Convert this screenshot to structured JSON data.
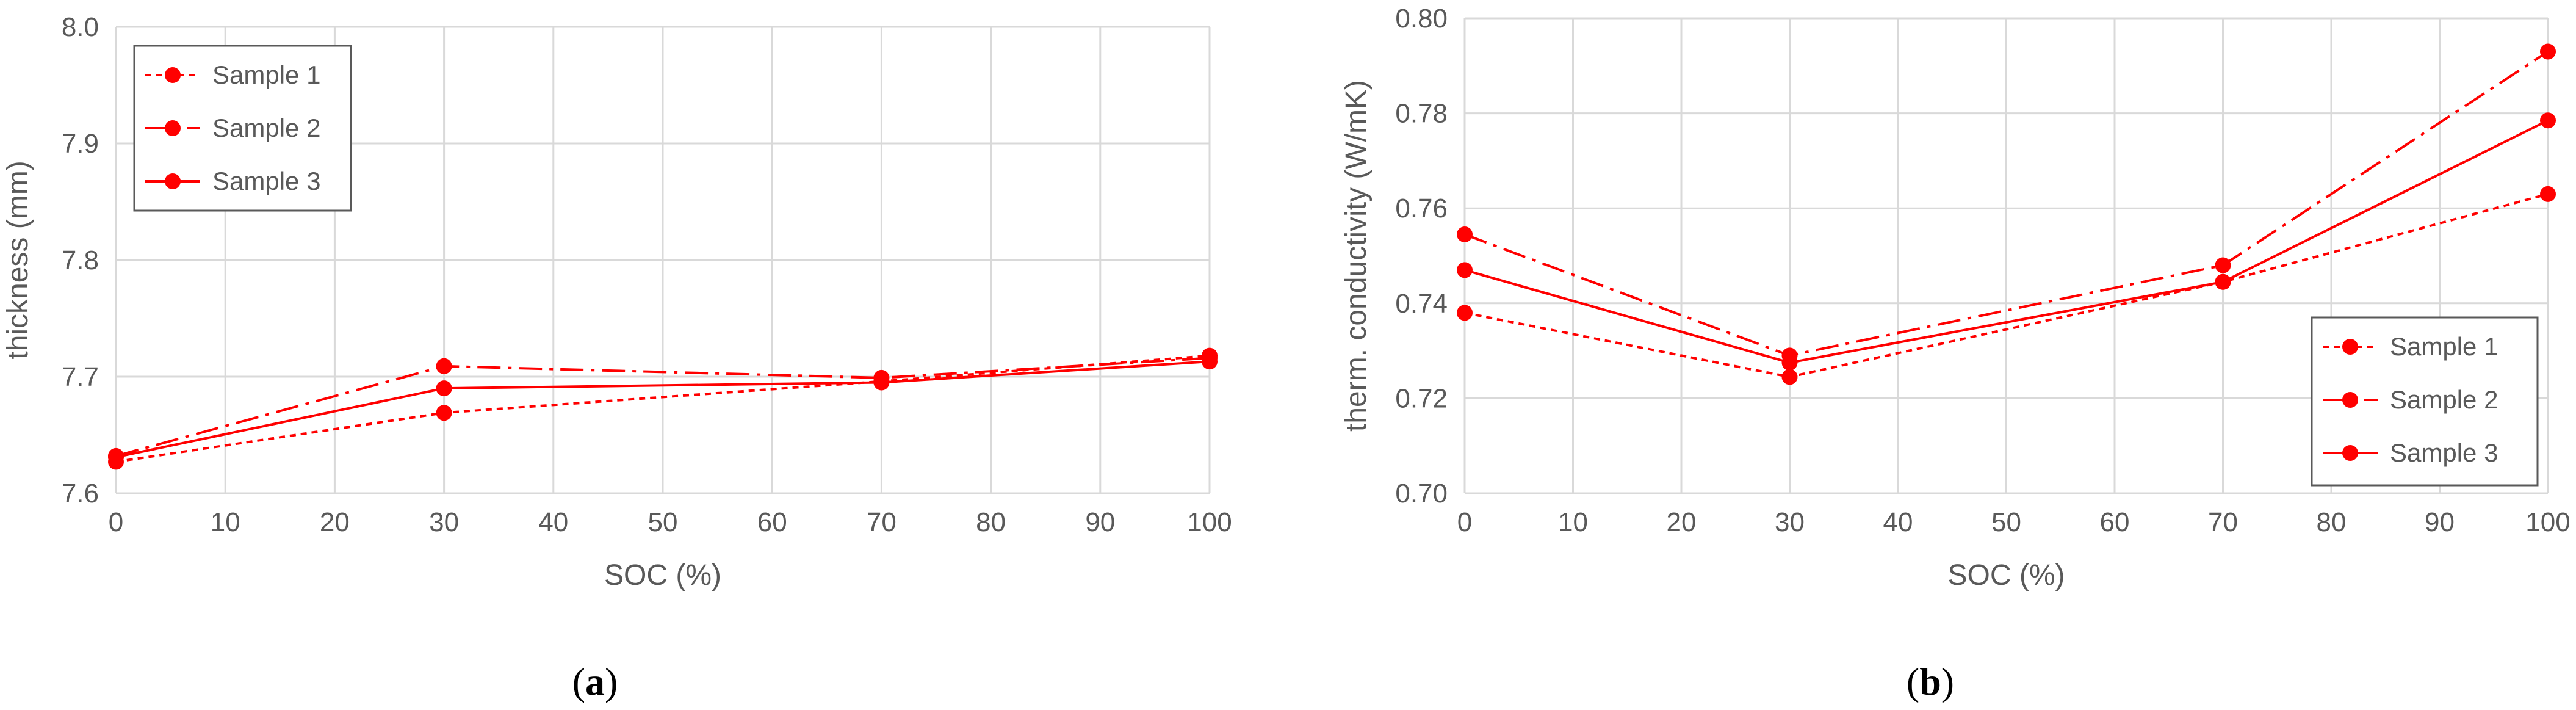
{
  "chart_data": [
    {
      "type": "line",
      "caption": {
        "open": "(",
        "letter": "a",
        "close": ")"
      },
      "xlabel": "SOC (%)",
      "ylabel": "thickness (mm)",
      "xlim": [
        0,
        100
      ],
      "ylim": [
        7.6,
        8.0
      ],
      "x_ticks": [
        "0",
        "10",
        "20",
        "30",
        "40",
        "50",
        "60",
        "70",
        "80",
        "90",
        "100"
      ],
      "y_ticks": [
        "7.6",
        "7.7",
        "7.8",
        "7.9",
        "8.0"
      ],
      "x_tick_values": [
        0,
        10,
        20,
        30,
        40,
        50,
        60,
        70,
        80,
        90,
        100
      ],
      "y_tick_values": [
        7.6,
        7.7,
        7.8,
        7.9,
        8.0
      ],
      "grid": true,
      "legend_position": "top-left",
      "x": [
        0,
        30,
        70,
        100
      ],
      "series": [
        {
          "name": "Sample 1",
          "line_style": "dotted",
          "values": [
            7.627,
            7.669,
            7.696,
            7.718
          ]
        },
        {
          "name": "Sample 2",
          "line_style": "dash-dot",
          "values": [
            7.632,
            7.709,
            7.699,
            7.716
          ]
        },
        {
          "name": "Sample 3",
          "line_style": "solid",
          "values": [
            7.631,
            7.69,
            7.695,
            7.713
          ]
        }
      ]
    },
    {
      "type": "line",
      "caption": {
        "open": "(",
        "letter": "b",
        "close": ")"
      },
      "xlabel": "SOC (%)",
      "ylabel": "therm. conductivity (W/mK)",
      "xlim": [
        0,
        100
      ],
      "ylim": [
        0.7,
        0.8
      ],
      "x_ticks": [
        "0",
        "10",
        "20",
        "30",
        "40",
        "50",
        "60",
        "70",
        "80",
        "90",
        "100"
      ],
      "y_ticks": [
        "0.70",
        "0.72",
        "0.74",
        "0.76",
        "0.78",
        "0.80"
      ],
      "x_tick_values": [
        0,
        10,
        20,
        30,
        40,
        50,
        60,
        70,
        80,
        90,
        100
      ],
      "y_tick_values": [
        0.7,
        0.72,
        0.74,
        0.76,
        0.78,
        0.8
      ],
      "grid": true,
      "legend_position": "bottom-right",
      "x": [
        0,
        30,
        70,
        100
      ],
      "series": [
        {
          "name": "Sample 1",
          "line_style": "dotted",
          "values": [
            0.738,
            0.7245,
            0.7445,
            0.763
          ]
        },
        {
          "name": "Sample 2",
          "line_style": "dash-dot",
          "values": [
            0.7545,
            0.729,
            0.748,
            0.793
          ]
        },
        {
          "name": "Sample 3",
          "line_style": "solid",
          "values": [
            0.747,
            0.7275,
            0.7445,
            0.7785
          ]
        }
      ]
    }
  ],
  "colors": {
    "series": "#ff0000",
    "grid": "#d9d9d9",
    "text": "#595959",
    "legend_border": "#595959"
  }
}
